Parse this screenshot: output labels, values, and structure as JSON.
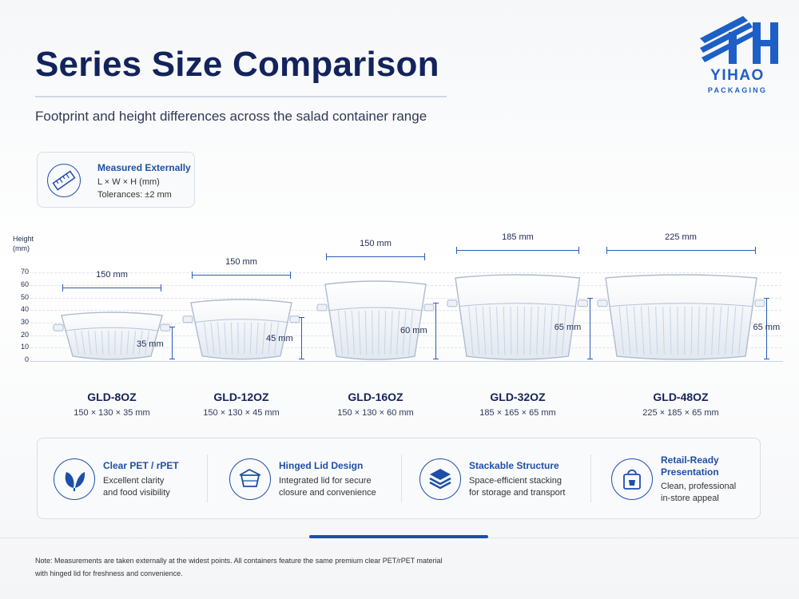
{
  "header": {
    "title": "Series Size Comparison",
    "subtitle": "Footprint and height differences across the salad container range"
  },
  "brand": {
    "name": "YIHAO",
    "tagline": "PACKAGING",
    "color": "#1e5fc7"
  },
  "measure_box": {
    "icon": "ruler-icon",
    "title": "Measured Externally",
    "line1": "L × W × H (mm)",
    "line2": "Tolerances: ±2 mm"
  },
  "axis": {
    "title_line1": "Height",
    "title_line2": "(mm)",
    "ticks": [
      "70",
      "60",
      "50",
      "40",
      "30",
      "20",
      "10",
      "0"
    ]
  },
  "products": [
    {
      "name": "GLD-8OZ",
      "dims": "150 × 130 × 35 mm",
      "width_label": "150 mm",
      "height_label": "35 mm",
      "length_mm": 150,
      "width_mm": 130,
      "height_mm": 35
    },
    {
      "name": "GLD-12OZ",
      "dims": "150 × 130 × 45 mm",
      "width_label": "150 mm",
      "height_label": "45 mm",
      "length_mm": 150,
      "width_mm": 130,
      "height_mm": 45
    },
    {
      "name": "GLD-16OZ",
      "dims": "150 × 130 × 60 mm",
      "width_label": "150 mm",
      "height_label": "60 mm",
      "length_mm": 150,
      "width_mm": 130,
      "height_mm": 60
    },
    {
      "name": "GLD-32OZ",
      "dims": "185 × 165 × 65 mm",
      "width_label": "185 mm",
      "height_label": "65 mm",
      "length_mm": 185,
      "width_mm": 165,
      "height_mm": 65
    },
    {
      "name": "GLD-48OZ",
      "dims": "225 × 185 × 65 mm",
      "width_label": "225 mm",
      "height_label": "65 mm",
      "length_mm": 225,
      "width_mm": 185,
      "height_mm": 65
    }
  ],
  "features": [
    {
      "icon": "leaf-icon",
      "title1": "Clear PET / rPET",
      "title2": "",
      "desc1": "Excellent clarity",
      "desc2": "and food visibility"
    },
    {
      "icon": "container-icon",
      "title1": "Hinged Lid Design",
      "title2": "",
      "desc1": "Integrated lid for secure",
      "desc2": "closure and convenience"
    },
    {
      "icon": "layers-icon",
      "title1": "Stackable Structure",
      "title2": "",
      "desc1": "Space-efficient stacking",
      "desc2": "for storage and transport"
    },
    {
      "icon": "shopping-bag-icon",
      "title1": "Retail-Ready",
      "title2": "Presentation",
      "desc1": "Clean, professional",
      "desc2": "in-store appeal"
    }
  ],
  "note": {
    "line1": "Note: Measurements are taken externally at the widest points. All containers feature the same premium clear PET/rPET material",
    "line2": "with hinged lid for freshness and convenience."
  },
  "colors": {
    "accent": "#1e4fa8",
    "title": "#13235b"
  }
}
